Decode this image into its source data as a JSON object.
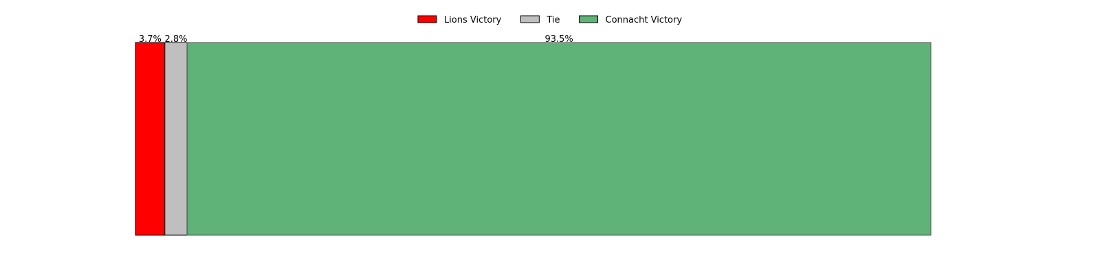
{
  "chart_data": {
    "type": "bar",
    "orientation": "horizontal-stacked",
    "categories": [
      ""
    ],
    "series": [
      {
        "name": "Lions Victory",
        "values": [
          3.7
        ],
        "label": "3.7%",
        "color": "#ff0000"
      },
      {
        "name": "Tie",
        "values": [
          2.8
        ],
        "label": "2.8%",
        "color": "#bfbfbf"
      },
      {
        "name": "Connacht Victory",
        "values": [
          93.5
        ],
        "label": "93.5%",
        "color": "#5fb378"
      }
    ],
    "xlim": [
      0,
      100
    ],
    "unit": "%",
    "grid": false,
    "axes_visible": false,
    "legend_position": "top-center"
  }
}
